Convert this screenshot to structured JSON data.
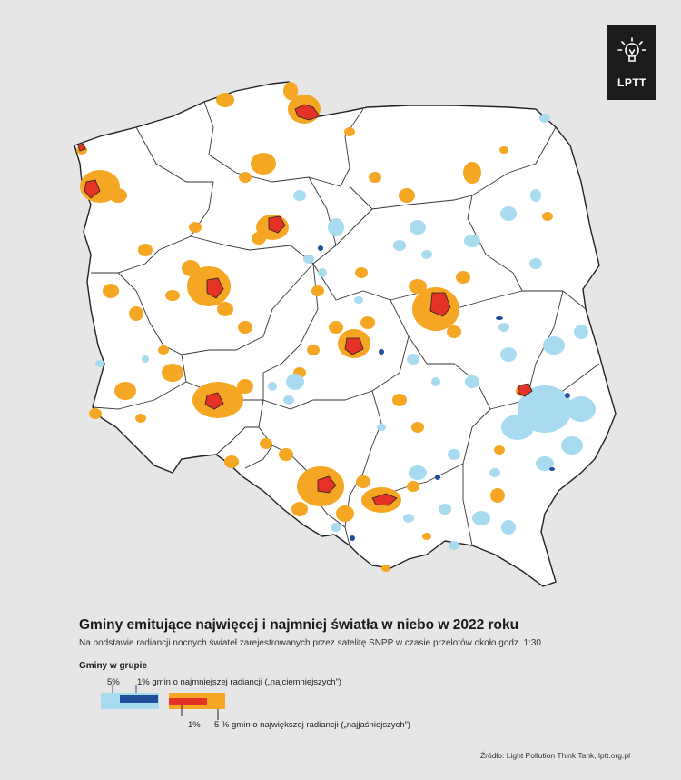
{
  "logo": {
    "text": "LPTT",
    "icon": "lightbulb-icon"
  },
  "title": "Gminy emitujące najwięcej i najmniej światła w niebo w 2022 roku",
  "subtitle": "Na podstawie radiancji nocnych świateł zarejestrowanych przez satelitę SNPP w czasie przelotów około godz. 1:30",
  "legend": {
    "title": "Gminy w grupie",
    "dark5_label": "5%",
    "dark1_label": "1% gmin o najmniejszej radiancji („najciemniejszych”)",
    "bright1_label": "1%",
    "bright5_label": "5 % gmin o największej radiancji („najjaśniejszych”)",
    "colors": {
      "dark5": "#a8daf0",
      "dark1": "#1f4e9a",
      "bright5": "#f5a623",
      "bright1": "#e53226"
    }
  },
  "source": "Źródło: Light Pollution Think Tank, lptt.org.pl",
  "map": {
    "background": "#ffffff",
    "border_color": "#222222"
  }
}
